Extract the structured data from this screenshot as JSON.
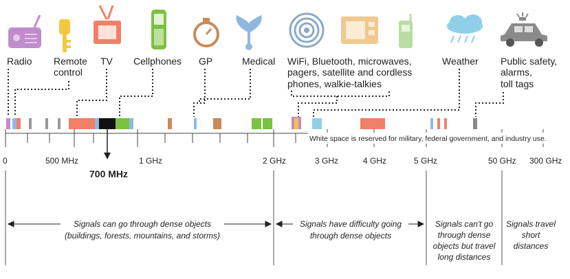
{
  "devices": [
    {
      "label": "Radio",
      "icon": "radio-icon"
    },
    {
      "label": "Remote",
      "label2": "control",
      "icon": "remote-control-icon"
    },
    {
      "label": "TV",
      "icon": "tv-icon"
    },
    {
      "label": "Cellphones",
      "icon": "cellphone-icon"
    },
    {
      "label": "GP",
      "icon": "gps-compass-icon"
    },
    {
      "label": "Medical",
      "icon": "stethoscope-icon"
    },
    {
      "label": "WiFi, Bluetooth, microwaves,",
      "label2": "pagers, satellite and cordless",
      "label3": "phones, walkie-talkies",
      "icon": "wireless-icons"
    },
    {
      "label": "Weather",
      "icon": "weather-cloud-icon"
    },
    {
      "label": "Public safety,",
      "label2": "alarms,",
      "label3": "toll tags",
      "icon": "police-car-icon"
    }
  ],
  "white_space_note": "White space is reserved for military, federal government, and industry use.",
  "axis_labels": [
    "0",
    "500 MHz",
    "1 GHz",
    "2 GHz",
    "3 GHz",
    "4 GHz",
    "5 GHz",
    "50 GHz",
    "300 GHz"
  ],
  "highlight": "700 MHz",
  "zones": [
    {
      "line1": "Signals can go through dense objects",
      "line2": "(buildings, forests, mountains, and storms)"
    },
    {
      "line1": "Signals have difficulty going",
      "line2": "through dense objects"
    },
    {
      "line1": "Signals can't go",
      "line2": "through dense",
      "line3": "objects but travel",
      "line4": "long distances"
    },
    {
      "line1": "Signals travel",
      "line2": "short",
      "line3": "distances"
    }
  ],
  "colors": {
    "radio": "#c08ccc",
    "remote": "#f3c840",
    "tv": "#f08068",
    "cell": "#7cc242",
    "gp": "#c88a5a",
    "medical": "#8fb8e0",
    "wireless": "#8aa8c8",
    "weather": "#8fd0e8",
    "safety": "#8a8a8a",
    "band700": "#111111"
  }
}
